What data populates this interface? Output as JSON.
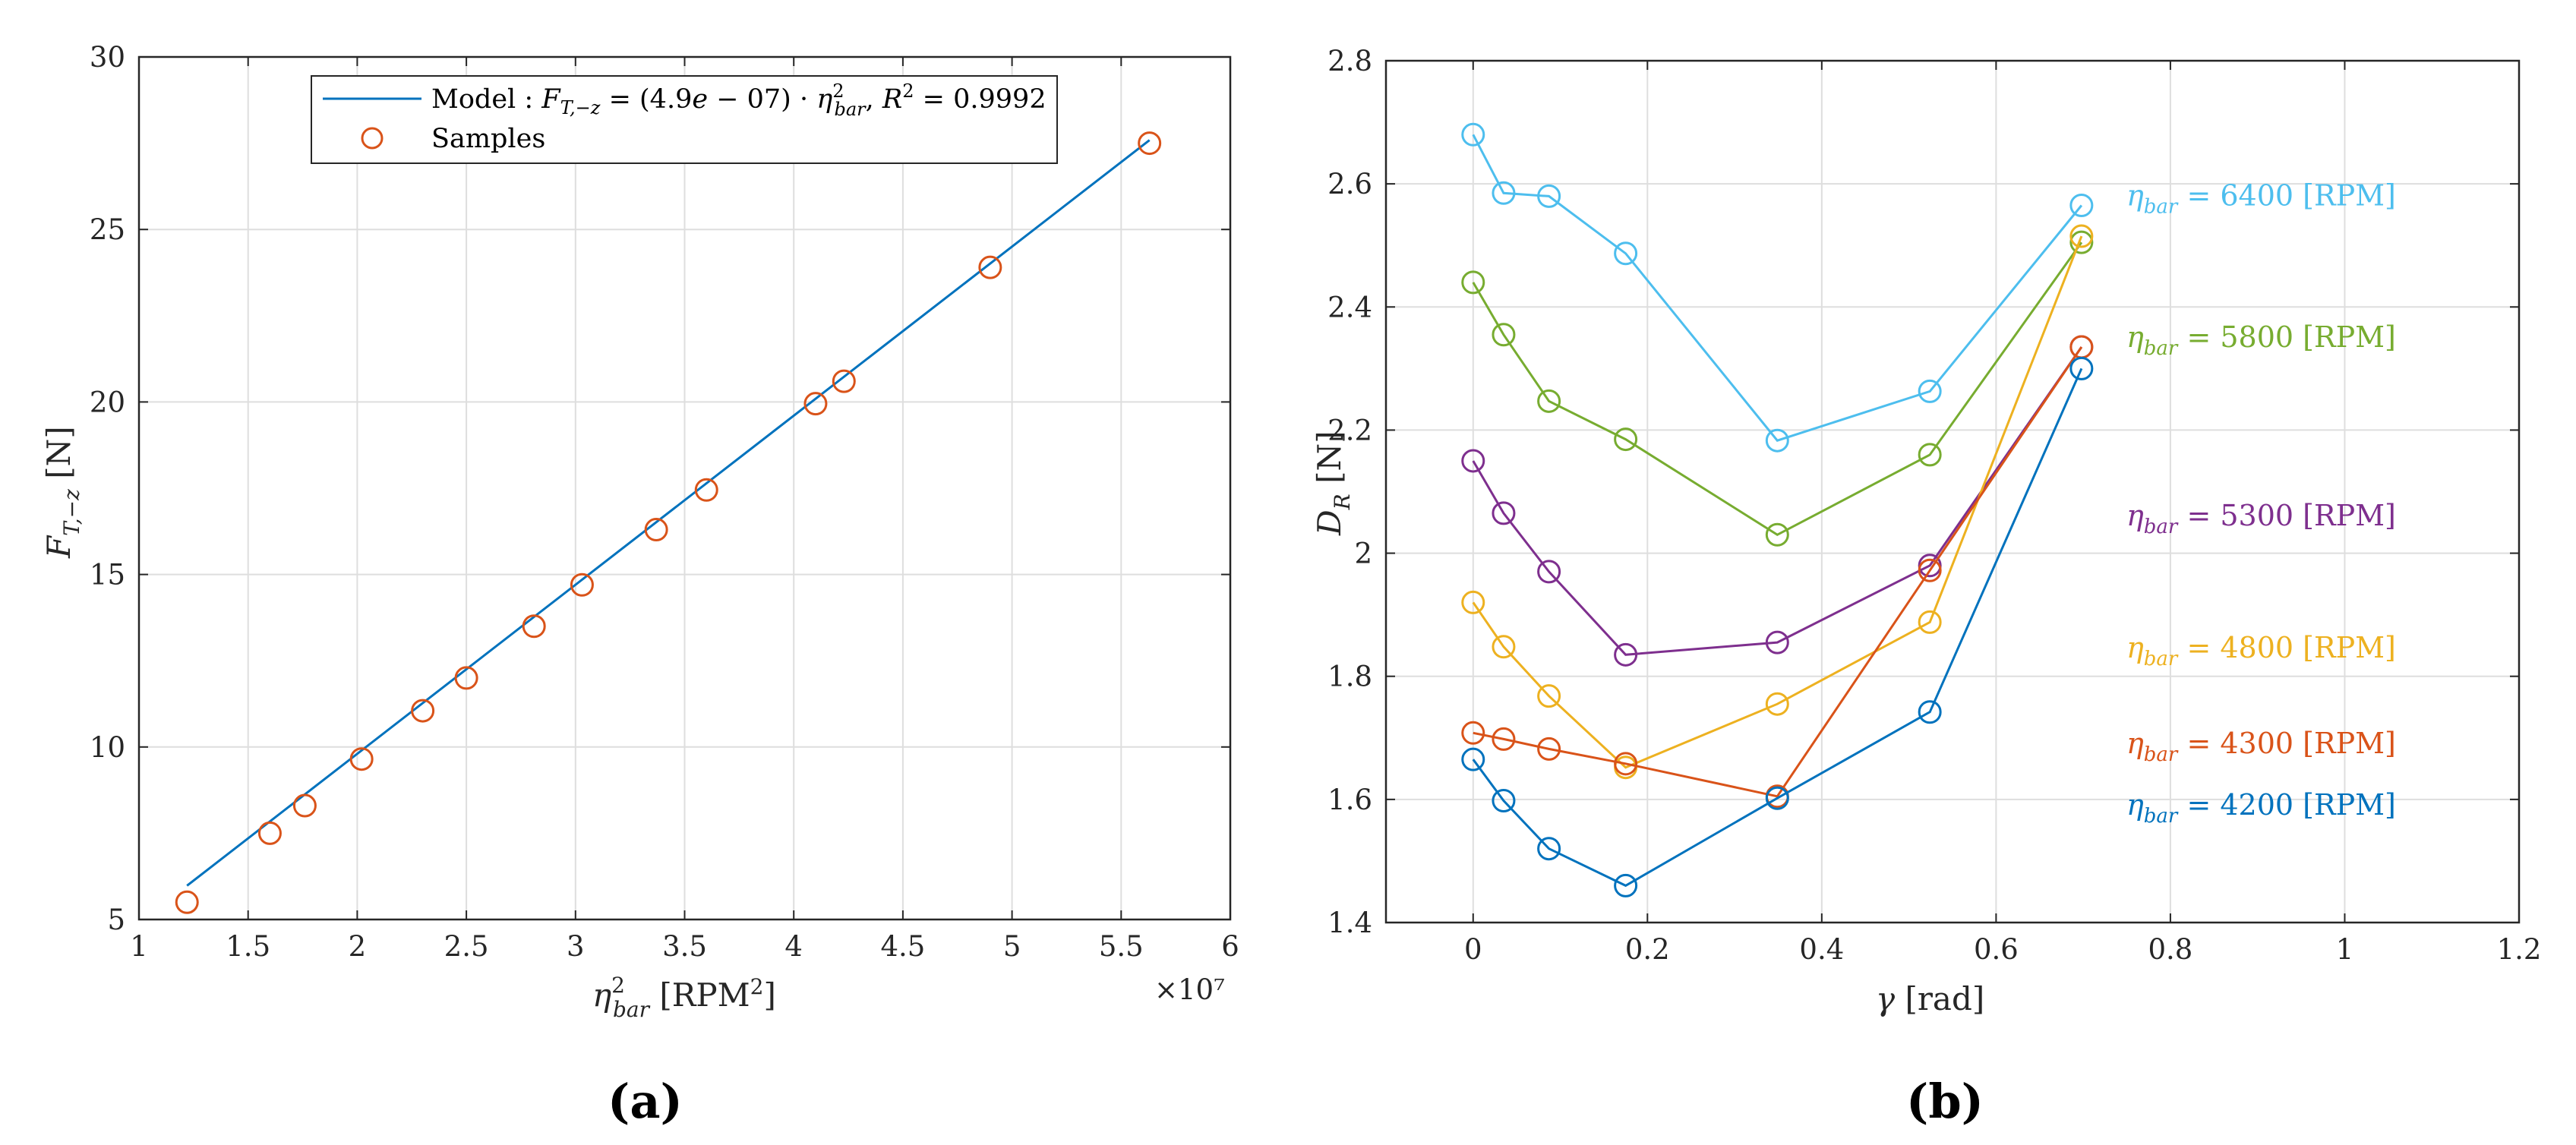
{
  "charts": [
    {
      "panel_label": "(a)",
      "chart_data": {
        "type": "scatter",
        "xlabel": "η²bar [RPM²]",
        "ylabel": "FT,−z [N]",
        "xlim": [
          10000000.0,
          60000000.0
        ],
        "ylim": [
          5,
          30
        ],
        "xticks": [
          1,
          1.5,
          2,
          2.5,
          3,
          3.5,
          4,
          4.5,
          5,
          5.5,
          6
        ],
        "xtick_labels": [
          "1",
          "1.5",
          "2",
          "2.5",
          "3",
          "3.5",
          "4",
          "4.5",
          "5",
          "5.5",
          "6"
        ],
        "yticks": [
          5,
          10,
          15,
          20,
          25,
          30
        ],
        "ytick_labels": [
          "5",
          "10",
          "15",
          "20",
          "25",
          "30"
        ],
        "x_exponent_label": "×10⁷",
        "grid": true,
        "legend_position": "top",
        "series": [
          {
            "name": "Model : FT,−z = (4.9e − 07) · η²bar, R² = 0.9992",
            "kind": "line",
            "color": "#0072BD",
            "x": [
              12200000,
              56300000
            ],
            "y": [
              5.98,
              27.59
            ]
          },
          {
            "name": "Samples",
            "kind": "markers",
            "color": "#D95319",
            "x": [
              12200000,
              16000000,
              17600000,
              20200000,
              23000000,
              25000000,
              28100000,
              30300000,
              33700000,
              36000000,
              41000000,
              42300000,
              49000000,
              56300000
            ],
            "y": [
              5.5,
              7.5,
              8.3,
              9.65,
              11.05,
              12.0,
              13.5,
              14.7,
              16.3,
              17.45,
              19.95,
              20.6,
              23.9,
              27.5
            ]
          }
        ]
      }
    },
    {
      "panel_label": "(b)",
      "chart_data": {
        "type": "line",
        "xlabel": "γ [rad]",
        "ylabel": "DR [N]",
        "xlim": [
          -0.1,
          1.2
        ],
        "ylim": [
          1.4,
          2.8
        ],
        "xticks": [
          0,
          0.2,
          0.4,
          0.6,
          0.8,
          1,
          1.2
        ],
        "xtick_labels": [
          "0",
          "0.2",
          "0.4",
          "0.6",
          "0.8",
          "1",
          "1.2"
        ],
        "yticks": [
          1.4,
          1.6,
          1.8,
          2.0,
          2.2,
          2.4,
          2.6,
          2.8
        ],
        "ytick_labels": [
          "1.4",
          "1.6",
          "1.8",
          "2",
          "2.2",
          "2.4",
          "2.6",
          "2.8"
        ],
        "grid": true,
        "x": [
          0,
          0.035,
          0.087,
          0.175,
          0.349,
          0.524,
          0.698
        ],
        "series": [
          {
            "name": "ηbar = 6400 [RPM]",
            "color": "#4DBEEE",
            "values": [
              2.68,
              2.585,
              2.58,
              2.487,
              2.183,
              2.263,
              2.565
            ],
            "label_y": 2.58
          },
          {
            "name": "ηbar = 5800 [RPM]",
            "color": "#77AC30",
            "values": [
              2.44,
              2.355,
              2.247,
              2.185,
              2.03,
              2.16,
              2.505
            ],
            "label_y": 2.35
          },
          {
            "name": "ηbar = 5300 [RPM]",
            "color": "#7E2F8E",
            "values": [
              2.15,
              2.065,
              1.97,
              1.835,
              1.855,
              1.98,
              2.335
            ],
            "label_y": 2.06
          },
          {
            "name": "ηbar = 4800 [RPM]",
            "color": "#EDB120",
            "values": [
              1.92,
              1.848,
              1.768,
              1.652,
              1.755,
              1.888,
              2.515
            ],
            "label_y": 1.845
          },
          {
            "name": "ηbar = 4300 [RPM]",
            "color": "#D95319",
            "values": [
              1.708,
              1.698,
              1.682,
              1.658,
              1.605,
              1.972,
              2.335
            ],
            "label_y": 1.69
          },
          {
            "name": "ηbar = 4200 [RPM]",
            "color": "#0072BD",
            "values": [
              1.665,
              1.598,
              1.52,
              1.46,
              1.602,
              1.742,
              2.3
            ],
            "label_y": 1.59
          }
        ]
      }
    }
  ]
}
